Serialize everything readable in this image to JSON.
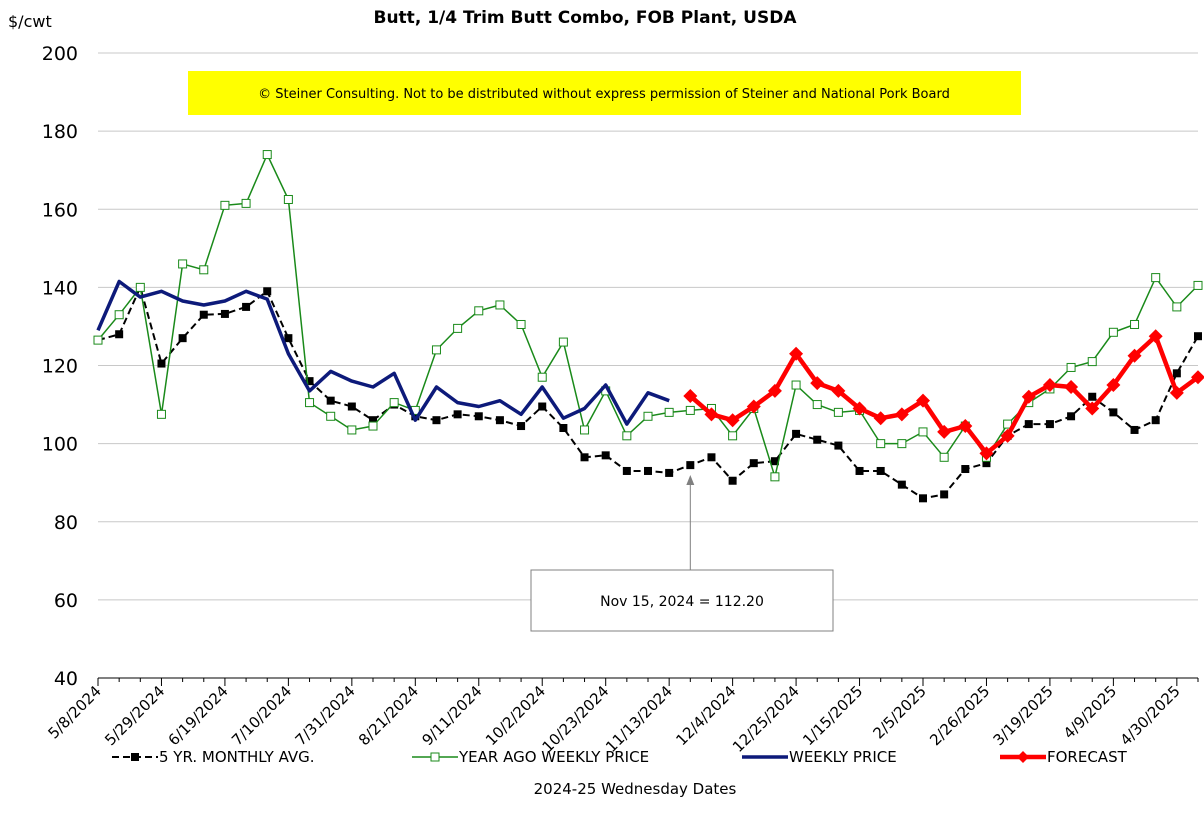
{
  "chart_data": {
    "type": "line",
    "title": "Butt, 1/4 Trim Butt Combo, FOB Plant, USDA",
    "ylabel": "$/cwt",
    "xlabel": "2024-25 Wednesday Dates",
    "ylim": [
      40,
      200
    ],
    "yticks": [
      40,
      60,
      80,
      100,
      120,
      140,
      160,
      180,
      200
    ],
    "grid": "horizontal",
    "legend_position": "bottom",
    "x_tick_labels": [
      "5/8/2024",
      "5/29/2024",
      "6/19/2024",
      "7/10/2024",
      "7/31/2024",
      "8/21/2024",
      "9/11/2024",
      "10/2/2024",
      "10/23/2024",
      "11/13/2024",
      "12/4/2024",
      "12/25/2024",
      "1/15/2025",
      "2/5/2025",
      "2/26/2025",
      "3/19/2025",
      "4/9/2025",
      "4/30/2025"
    ],
    "x_tick_every": 3,
    "n_weeks": 52,
    "series": [
      {
        "name": "5 YR. MONTHLY AVG.",
        "color": "#000000",
        "style": "dashed-square",
        "values": [
          126.5,
          128.0,
          140.0,
          120.5,
          127.0,
          133.0,
          133.2,
          135.0,
          139.0,
          127.0,
          116.0,
          111.0,
          109.5,
          106.0,
          110.0,
          107.0,
          106.0,
          107.5,
          107.0,
          106.0,
          104.5,
          109.5,
          104.0,
          96.5,
          97.0,
          93.0,
          93.0,
          92.5,
          94.5,
          96.5,
          90.5,
          95.0,
          95.5,
          102.5,
          101.0,
          99.5,
          93.0,
          93.0,
          89.5,
          86.0,
          87.0,
          93.5,
          95.0,
          102.0,
          105.0,
          105.0,
          107.0,
          112.0,
          108.0,
          103.5,
          106.0,
          118.0,
          127.5
        ]
      },
      {
        "name": "YEAR AGO WEEKLY PRICE",
        "color": "#1a8a1a",
        "style": "open-square",
        "values": [
          126.5,
          133.0,
          140.0,
          107.5,
          146.0,
          144.5,
          161.0,
          161.5,
          174.0,
          162.5,
          110.5,
          107.0,
          103.5,
          104.5,
          110.5,
          108.5,
          124.0,
          129.5,
          134.0,
          135.5,
          130.5,
          117.0,
          126.0,
          103.5,
          113.5,
          102.0,
          107.0,
          108.0,
          108.5,
          109.0,
          102.0,
          109.0,
          91.5,
          115.0,
          110.0,
          108.0,
          108.5,
          100.0,
          100.0,
          103.0,
          96.5,
          104.5,
          96.5,
          105.0,
          110.5,
          114.0,
          119.5,
          121.0,
          128.5,
          130.5,
          142.5,
          135.0,
          140.5
        ]
      },
      {
        "name": "WEEKLY PRICE",
        "color": "#0d1a7a",
        "style": "solid-thick",
        "values": [
          129.0,
          141.5,
          137.5,
          139.0,
          136.5,
          135.5,
          136.5,
          139.0,
          137.0,
          123.0,
          113.5,
          118.5,
          116.0,
          114.5,
          118.0,
          106.0,
          114.5,
          110.5,
          109.5,
          111.0,
          107.5,
          114.5,
          106.5,
          109.0,
          115.0,
          105.0,
          113.0,
          111.0
        ]
      },
      {
        "name": "FORECAST",
        "color": "#ff0000",
        "style": "solid-diamond",
        "start_index": 28,
        "values": [
          112.2,
          107.5,
          106.0,
          109.5,
          113.5,
          123.0,
          115.5,
          113.5,
          109.0,
          106.5,
          107.5,
          111.0,
          103.0,
          104.5,
          97.5,
          102.0,
          112.0,
          115.0,
          114.5,
          109.0,
          115.0,
          122.5,
          127.5,
          113.0,
          117.0
        ]
      }
    ],
    "annotations": [
      {
        "text": "© Steiner Consulting.  Not to be distributed without express permission of Steiner and National Pork Board"
      },
      {
        "text": "Nov 15, 2024  = 112.20",
        "x_index": 28
      }
    ]
  }
}
